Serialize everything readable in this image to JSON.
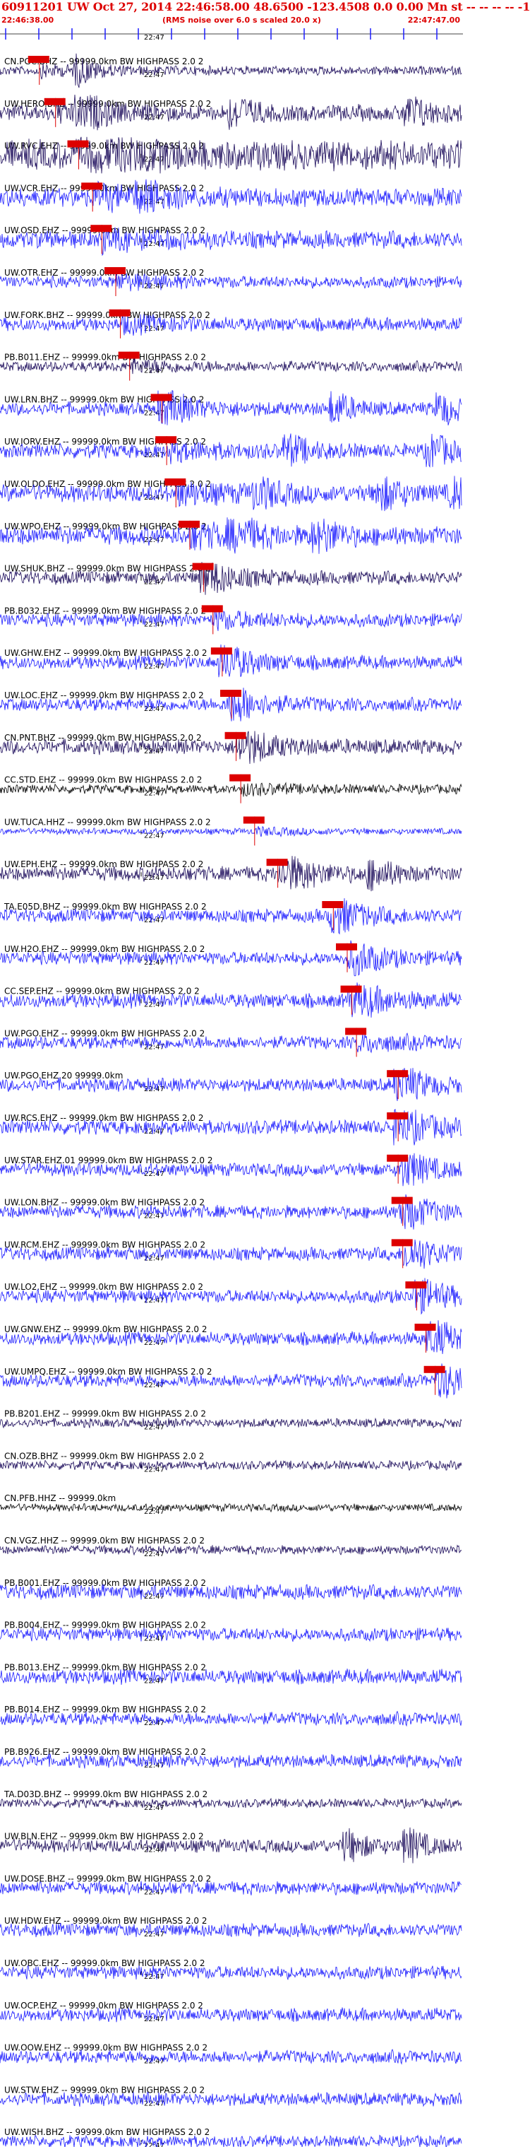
{
  "header": {
    "title": "60911201 UW Oct 27, 2014 22:46:58.00   48.6500  -123.4508   0.0 0.00 Mn st  -- -- -- --  -1",
    "start_time": "22:46:38.00",
    "noise_note": "(RMS noise over 6.0 s scaled 20.0 x)",
    "end_time": "22:47:47.00"
  },
  "colors": {
    "header_text": "#dd0000",
    "pick_marker": "#dd0000",
    "move_out_line": "#dd0000",
    "trace_blue": "#1a1aff",
    "trace_dark": "#1a0a5a",
    "trace_black": "#000000",
    "label_text": "#000000"
  },
  "chart_data": {
    "type": "line",
    "title": "60911201 UW Oct 27, 2014 22:46:58.00   48.6500  -123.4508   0.0 0.00 Mn st  -- -- -- --  -1",
    "x_range_labels": [
      "22:46:38.00",
      "22:47:47.00"
    ],
    "time_tick_label": "22:47",
    "traces": [
      {
        "label": "CN.PGC.BHZ -- 99999.0km BW  HIGHPASS  2.0  2",
        "color": "dark",
        "pick_frac": 0.085,
        "amp": 0.15,
        "bursts": [
          0.17
        ]
      },
      {
        "label": "UW.HERO.BHZ -- 99999.0km BW  HIGHPASS  2.0  2",
        "color": "dark",
        "pick_frac": 0.12,
        "amp": 0.4,
        "bursts": [
          0.17,
          0.5,
          0.88
        ]
      },
      {
        "label": "UW.RVC.EHZ -- 99999.0km BW  HIGHPASS  2.0  2",
        "color": "dark",
        "pick_frac": 0.17,
        "amp": 0.9,
        "bursts": [
          0.25
        ]
      },
      {
        "label": "UW.VCR.EHZ -- 99999.0km BW  HIGHPASS  2.0  2",
        "color": "blue",
        "pick_frac": 0.2,
        "amp": 0.5,
        "bursts": [
          0.3
        ]
      },
      {
        "label": "UW.OSD.EHZ -- 99999.0km BW  HIGHPASS  2.0  2",
        "color": "blue",
        "pick_frac": 0.22,
        "amp": 0.45,
        "bursts": []
      },
      {
        "label": "UW.OTR.EHZ -- 99999.0km BW  HIGHPASS  2.0  2",
        "color": "blue",
        "pick_frac": 0.25,
        "amp": 0.25,
        "bursts": []
      },
      {
        "label": "UW.FORK.BHZ -- 99999.0km BW  HIGHPASS  2.0  2",
        "color": "blue",
        "pick_frac": 0.26,
        "amp": 0.3,
        "bursts": []
      },
      {
        "label": "PB.B011.EHZ -- 99999.0km BW  HIGHPASS  2.0  2",
        "color": "dark",
        "pick_frac": 0.28,
        "amp": 0.2,
        "bursts": []
      },
      {
        "label": "UW.LRN.BHZ -- 99999.0km BW  HIGHPASS  2.0  2",
        "color": "blue",
        "pick_frac": 0.35,
        "amp": 0.3,
        "bursts": [
          0.35,
          0.72,
          0.95
        ]
      },
      {
        "label": "UW.JORV.EHZ -- 99999.0km BW  HIGHPASS  2.0  2",
        "color": "blue",
        "pick_frac": 0.36,
        "amp": 0.35,
        "bursts": [
          0.62,
          0.93
        ]
      },
      {
        "label": "UW.OLDO.EHZ -- 99999.0km BW  HIGHPASS  2.0  2",
        "color": "blue",
        "pick_frac": 0.38,
        "amp": 0.45,
        "bursts": [
          0.55,
          0.82,
          0.98
        ]
      },
      {
        "label": "UW.WPO.EHZ -- 99999.0km BW  HIGHPASS  2.0  2",
        "color": "blue",
        "pick_frac": 0.41,
        "amp": 0.5,
        "bursts": [
          0.5,
          0.68
        ]
      },
      {
        "label": "UW.SHUK.BHZ -- 99999.0km BW  HIGHPASS  2.0  2",
        "color": "dark",
        "pick_frac": 0.44,
        "amp": 0.3,
        "bursts": [
          0.44
        ]
      },
      {
        "label": "PB.B032.EHZ -- 99999.0km BW  HIGHPASS  2.0  2",
        "color": "blue",
        "pick_frac": 0.46,
        "amp": 0.3,
        "bursts": []
      },
      {
        "label": "UW.GHW.EHZ -- 99999.0km BW  HIGHPASS  2.0  2",
        "color": "blue",
        "pick_frac": 0.48,
        "amp": 0.3,
        "bursts": [
          0.48
        ]
      },
      {
        "label": "UW.LOC.EHZ -- 99999.0km BW  HIGHPASS  2.0  2",
        "color": "blue",
        "pick_frac": 0.5,
        "amp": 0.3,
        "bursts": [
          0.5
        ]
      },
      {
        "label": "CN.PNT.BHZ -- 99999.0km BW  HIGHPASS  2.0  2",
        "color": "dark",
        "pick_frac": 0.51,
        "amp": 0.35,
        "bursts": [
          0.52
        ]
      },
      {
        "label": "CC.STD.EHZ -- 99999.0km BW  HIGHPASS  2.0  2",
        "color": "black",
        "pick_frac": 0.52,
        "amp": 0.15,
        "bursts": []
      },
      {
        "label": "UW.TUCA.HHZ -- 99999.0km BW  HIGHPASS  2.0  2",
        "color": "blue",
        "pick_frac": 0.55,
        "amp": 0.05,
        "bursts": []
      },
      {
        "label": "UW.EPH.EHZ -- 99999.0km BW  HIGHPASS  2.0  2",
        "color": "dark",
        "pick_frac": 0.6,
        "amp": 0.35,
        "bursts": [
          0.62,
          0.8
        ]
      },
      {
        "label": "TA.E05D.BHZ -- 99999.0km BW  HIGHPASS  2.0  2",
        "color": "blue",
        "pick_frac": 0.72,
        "amp": 0.3,
        "bursts": [
          0.72
        ]
      },
      {
        "label": "UW.H2O.EHZ -- 99999.0km BW  HIGHPASS  2.0  2",
        "color": "blue",
        "pick_frac": 0.75,
        "amp": 0.3,
        "bursts": [
          0.76
        ]
      },
      {
        "label": "CC.SEP.EHZ -- 99999.0km BW  HIGHPASS  2.0  2",
        "color": "blue",
        "pick_frac": 0.76,
        "amp": 0.35,
        "bursts": [
          0.76
        ]
      },
      {
        "label": "UW.PGO.EHZ -- 99999.0km BW  HIGHPASS  2.0  2",
        "color": "blue",
        "pick_frac": 0.77,
        "amp": 0.3,
        "bursts": []
      },
      {
        "label": "UW.PGO.EHZ.20 99999.0km",
        "color": "blue",
        "pick_frac": 0.86,
        "amp": 0.3,
        "bursts": [
          0.86
        ]
      },
      {
        "label": "UW.RCS.EHZ -- 99999.0km BW  HIGHPASS  2.0  2",
        "color": "blue",
        "pick_frac": 0.86,
        "amp": 0.35,
        "bursts": [
          0.86
        ]
      },
      {
        "label": "UW.STAR.EHZ.01 99999.0km BW  HIGHPASS  2.0  2",
        "color": "blue",
        "pick_frac": 0.86,
        "amp": 0.3,
        "bursts": [
          0.87
        ]
      },
      {
        "label": "UW.LON.BHZ -- 99999.0km BW  HIGHPASS  2.0  2",
        "color": "blue",
        "pick_frac": 0.87,
        "amp": 0.3,
        "bursts": [
          0.87
        ]
      },
      {
        "label": "UW.RCM.EHZ -- 99999.0km BW  HIGHPASS  2.0  2",
        "color": "blue",
        "pick_frac": 0.87,
        "amp": 0.3,
        "bursts": [
          0.88
        ]
      },
      {
        "label": "UW.LO2.EHZ -- 99999.0km BW  HIGHPASS  2.0  2",
        "color": "blue",
        "pick_frac": 0.9,
        "amp": 0.3,
        "bursts": [
          0.9
        ]
      },
      {
        "label": "UW.GNW.EHZ -- 99999.0km BW  HIGHPASS  2.0  2",
        "color": "blue",
        "pick_frac": 0.92,
        "amp": 0.3,
        "bursts": [
          0.93
        ]
      },
      {
        "label": "UW.UMPQ.EHZ -- 99999.0km BW  HIGHPASS  2.0  2",
        "color": "blue",
        "pick_frac": 0.94,
        "amp": 0.3,
        "bursts": [
          0.95
        ]
      },
      {
        "label": "PB.B201.EHZ -- 99999.0km BW  HIGHPASS  2.0  2",
        "color": "dark",
        "pick_frac": null,
        "amp": 0.15,
        "bursts": []
      },
      {
        "label": "CN.OZB.BHZ -- 99999.0km BW  HIGHPASS  2.0  2",
        "color": "dark",
        "pick_frac": null,
        "amp": 0.15,
        "bursts": []
      },
      {
        "label": "CN.PFB.HHZ -- 99999.0km",
        "color": "black",
        "pick_frac": null,
        "amp": 0.1,
        "bursts": []
      },
      {
        "label": "CN.VGZ.HHZ -- 99999.0km BW  HIGHPASS  2.0  2",
        "color": "dark",
        "pick_frac": null,
        "amp": 0.15,
        "bursts": []
      },
      {
        "label": "PB.B001.EHZ -- 99999.0km BW  HIGHPASS  2.0  2",
        "color": "blue",
        "pick_frac": null,
        "amp": 0.35,
        "bursts": []
      },
      {
        "label": "PB.B004.EHZ -- 99999.0km BW  HIGHPASS  2.0  2",
        "color": "blue",
        "pick_frac": null,
        "amp": 0.3,
        "bursts": []
      },
      {
        "label": "PB.B013.EHZ -- 99999.0km BW  HIGHPASS  2.0  2",
        "color": "blue",
        "pick_frac": null,
        "amp": 0.35,
        "bursts": []
      },
      {
        "label": "PB.B014.EHZ -- 99999.0km BW  HIGHPASS  2.0  2",
        "color": "blue",
        "pick_frac": null,
        "amp": 0.3,
        "bursts": []
      },
      {
        "label": "PB.B926.EHZ -- 99999.0km BW  HIGHPASS  2.0  2",
        "color": "blue",
        "pick_frac": null,
        "amp": 0.3,
        "bursts": []
      },
      {
        "label": "TA.D03D.BHZ -- 99999.0km BW  HIGHPASS  2.0  2",
        "color": "dark",
        "pick_frac": null,
        "amp": 0.15,
        "bursts": []
      },
      {
        "label": "UW.BLN.EHZ -- 99999.0km BW  HIGHPASS  2.0  2",
        "color": "dark",
        "pick_frac": null,
        "amp": 0.3,
        "bursts": [
          0.75,
          0.88
        ]
      },
      {
        "label": "UW.DOSE.BHZ -- 99999.0km BW  HIGHPASS  2.0  2",
        "color": "blue",
        "pick_frac": null,
        "amp": 0.3,
        "bursts": []
      },
      {
        "label": "UW.HDW.EHZ -- 99999.0km BW  HIGHPASS  2.0  2",
        "color": "blue",
        "pick_frac": null,
        "amp": 0.3,
        "bursts": []
      },
      {
        "label": "UW.OBC.EHZ -- 99999.0km BW  HIGHPASS  2.0  2",
        "color": "blue",
        "pick_frac": null,
        "amp": 0.3,
        "bursts": []
      },
      {
        "label": "UW.OCP.EHZ -- 99999.0km BW  HIGHPASS  2.0  2",
        "color": "blue",
        "pick_frac": null,
        "amp": 0.3,
        "bursts": []
      },
      {
        "label": "UW.OOW.EHZ -- 99999.0km BW  HIGHPASS  2.0  2",
        "color": "blue",
        "pick_frac": null,
        "amp": 0.3,
        "bursts": []
      },
      {
        "label": "UW.STW.EHZ -- 99999.0km BW  HIGHPASS  2.0  2",
        "color": "blue",
        "pick_frac": null,
        "amp": 0.3,
        "bursts": []
      },
      {
        "label": "UW.WISH.BHZ -- 99999.0km BW  HIGHPASS  2.0  2",
        "color": "blue",
        "pick_frac": null,
        "amp": 0.25,
        "bursts": []
      }
    ]
  }
}
